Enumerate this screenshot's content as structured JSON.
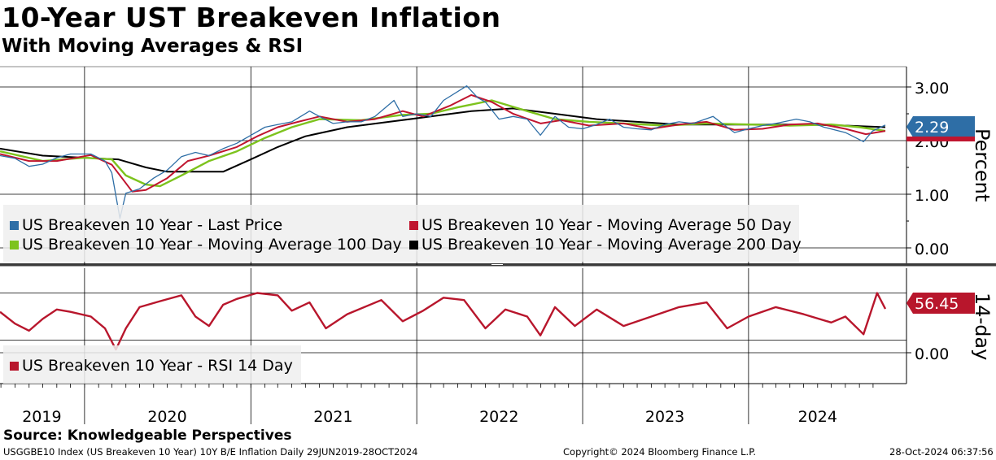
{
  "title": "10-Year UST Breakeven Inflation",
  "subtitle": "With Moving Averages & RSI",
  "source": "Source: Knowledgeable Perspectives",
  "footer": {
    "ticker": "USGGBE10 Index (US Breakeven 10 Year) 10Y B/E Inflation  Daily 29JUN2019-28OCT2024",
    "copyright": "Copyright© 2024 Bloomberg Finance L.P.",
    "timestamp": "28-Oct-2024 06:37:56"
  },
  "colors": {
    "last_price": "#2e6ea6",
    "ma50": "#c0152f",
    "ma100": "#7dc31d",
    "ma200": "#000000",
    "rsi": "#b8162c",
    "last_badge": "#2e6ea6",
    "rsi_badge": "#b8162c"
  },
  "chart_data": [
    {
      "type": "line",
      "ylabel": "Percent",
      "ylim": [
        -0.6,
        3.3
      ],
      "yticks": [
        "3.00",
        "2.00",
        "1.00",
        "0.00"
      ],
      "legend_placement": "bottom-left",
      "last_value_label": "2.29",
      "series": [
        {
          "name": "US Breakeven 10 Year - Last Price",
          "points": [
            [
              "2019-06-29",
              1.72
            ],
            [
              "2019-08-01",
              1.67
            ],
            [
              "2019-09-01",
              1.52
            ],
            [
              "2019-10-01",
              1.56
            ],
            [
              "2019-11-01",
              1.68
            ],
            [
              "2019-12-01",
              1.75
            ],
            [
              "2020-01-15",
              1.75
            ],
            [
              "2020-02-15",
              1.62
            ],
            [
              "2020-03-01",
              1.4
            ],
            [
              "2020-03-19",
              0.55
            ],
            [
              "2020-04-01",
              1.02
            ],
            [
              "2020-05-01",
              1.1
            ],
            [
              "2020-06-01",
              1.3
            ],
            [
              "2020-07-01",
              1.45
            ],
            [
              "2020-08-01",
              1.7
            ],
            [
              "2020-09-01",
              1.78
            ],
            [
              "2020-10-01",
              1.72
            ],
            [
              "2020-11-01",
              1.85
            ],
            [
              "2020-12-01",
              1.95
            ],
            [
              "2021-01-01",
              2.1
            ],
            [
              "2021-02-01",
              2.25
            ],
            [
              "2021-03-01",
              2.3
            ],
            [
              "2021-04-01",
              2.35
            ],
            [
              "2021-05-10",
              2.55
            ],
            [
              "2021-06-01",
              2.45
            ],
            [
              "2021-07-01",
              2.32
            ],
            [
              "2021-08-01",
              2.35
            ],
            [
              "2021-09-01",
              2.35
            ],
            [
              "2021-10-01",
              2.45
            ],
            [
              "2021-11-12",
              2.75
            ],
            [
              "2021-12-01",
              2.45
            ],
            [
              "2022-01-01",
              2.5
            ],
            [
              "2022-02-01",
              2.45
            ],
            [
              "2022-03-01",
              2.75
            ],
            [
              "2022-04-21",
              3.02
            ],
            [
              "2022-05-15",
              2.8
            ],
            [
              "2022-06-01",
              2.72
            ],
            [
              "2022-07-01",
              2.4
            ],
            [
              "2022-08-01",
              2.45
            ],
            [
              "2022-09-01",
              2.4
            ],
            [
              "2022-09-30",
              2.1
            ],
            [
              "2022-11-01",
              2.45
            ],
            [
              "2022-12-01",
              2.25
            ],
            [
              "2023-01-01",
              2.22
            ],
            [
              "2023-02-01",
              2.3
            ],
            [
              "2023-03-01",
              2.4
            ],
            [
              "2023-04-01",
              2.25
            ],
            [
              "2023-05-01",
              2.22
            ],
            [
              "2023-06-01",
              2.2
            ],
            [
              "2023-07-01",
              2.3
            ],
            [
              "2023-08-01",
              2.35
            ],
            [
              "2023-09-01",
              2.32
            ],
            [
              "2023-10-15",
              2.45
            ],
            [
              "2023-11-15",
              2.25
            ],
            [
              "2023-12-01",
              2.15
            ],
            [
              "2024-01-01",
              2.22
            ],
            [
              "2024-02-01",
              2.28
            ],
            [
              "2024-03-01",
              2.32
            ],
            [
              "2024-04-15",
              2.4
            ],
            [
              "2024-05-15",
              2.35
            ],
            [
              "2024-06-15",
              2.25
            ],
            [
              "2024-08-01",
              2.15
            ],
            [
              "2024-09-10",
              1.98
            ],
            [
              "2024-09-30",
              2.18
            ],
            [
              "2024-10-28",
              2.29
            ]
          ]
        },
        {
          "name": "US Breakeven 10 Year - Moving Average 50 Day",
          "points": [
            [
              "2019-06-29",
              1.75
            ],
            [
              "2019-09-01",
              1.62
            ],
            [
              "2019-11-01",
              1.62
            ],
            [
              "2020-01-15",
              1.73
            ],
            [
              "2020-03-01",
              1.55
            ],
            [
              "2020-04-15",
              1.05
            ],
            [
              "2020-05-15",
              1.08
            ],
            [
              "2020-07-01",
              1.3
            ],
            [
              "2020-08-15",
              1.62
            ],
            [
              "2020-10-01",
              1.72
            ],
            [
              "2020-12-01",
              1.88
            ],
            [
              "2021-01-15",
              2.08
            ],
            [
              "2021-03-01",
              2.25
            ],
            [
              "2021-04-15",
              2.35
            ],
            [
              "2021-06-01",
              2.45
            ],
            [
              "2021-08-01",
              2.35
            ],
            [
              "2021-10-01",
              2.4
            ],
            [
              "2021-12-01",
              2.55
            ],
            [
              "2022-01-15",
              2.45
            ],
            [
              "2022-03-15",
              2.65
            ],
            [
              "2022-05-01",
              2.85
            ],
            [
              "2022-06-15",
              2.72
            ],
            [
              "2022-08-01",
              2.5
            ],
            [
              "2022-10-01",
              2.32
            ],
            [
              "2022-11-15",
              2.38
            ],
            [
              "2023-01-15",
              2.28
            ],
            [
              "2023-04-01",
              2.32
            ],
            [
              "2023-06-01",
              2.22
            ],
            [
              "2023-08-01",
              2.3
            ],
            [
              "2023-10-01",
              2.35
            ],
            [
              "2023-12-01",
              2.2
            ],
            [
              "2024-02-01",
              2.22
            ],
            [
              "2024-04-01",
              2.3
            ],
            [
              "2024-06-01",
              2.32
            ],
            [
              "2024-08-01",
              2.22
            ],
            [
              "2024-09-15",
              2.12
            ],
            [
              "2024-10-28",
              2.18
            ]
          ]
        },
        {
          "name": "US Breakeven 10 Year - Moving Average 100 Day",
          "points": [
            [
              "2019-06-29",
              1.8
            ],
            [
              "2019-10-01",
              1.62
            ],
            [
              "2020-01-01",
              1.68
            ],
            [
              "2020-03-01",
              1.65
            ],
            [
              "2020-04-01",
              1.35
            ],
            [
              "2020-05-15",
              1.18
            ],
            [
              "2020-06-15",
              1.15
            ],
            [
              "2020-08-01",
              1.35
            ],
            [
              "2020-10-01",
              1.62
            ],
            [
              "2020-12-01",
              1.8
            ],
            [
              "2021-02-01",
              2.05
            ],
            [
              "2021-04-01",
              2.25
            ],
            [
              "2021-06-01",
              2.4
            ],
            [
              "2021-09-01",
              2.38
            ],
            [
              "2021-12-01",
              2.48
            ],
            [
              "2022-02-01",
              2.5
            ],
            [
              "2022-04-01",
              2.62
            ],
            [
              "2022-06-15",
              2.75
            ],
            [
              "2022-09-01",
              2.55
            ],
            [
              "2022-11-01",
              2.4
            ],
            [
              "2023-01-15",
              2.35
            ],
            [
              "2023-04-01",
              2.32
            ],
            [
              "2023-07-01",
              2.28
            ],
            [
              "2023-10-01",
              2.32
            ],
            [
              "2024-01-01",
              2.3
            ],
            [
              "2024-04-01",
              2.28
            ],
            [
              "2024-07-01",
              2.3
            ],
            [
              "2024-09-01",
              2.25
            ],
            [
              "2024-10-28",
              2.18
            ]
          ]
        },
        {
          "name": "US Breakeven 10 Year - Moving Average 200 Day",
          "points": [
            [
              "2019-06-29",
              1.85
            ],
            [
              "2019-10-01",
              1.72
            ],
            [
              "2020-01-01",
              1.68
            ],
            [
              "2020-03-15",
              1.65
            ],
            [
              "2020-05-15",
              1.5
            ],
            [
              "2020-07-01",
              1.42
            ],
            [
              "2020-09-01",
              1.42
            ],
            [
              "2020-11-01",
              1.42
            ],
            [
              "2021-01-01",
              1.65
            ],
            [
              "2021-03-01",
              1.88
            ],
            [
              "2021-05-01",
              2.08
            ],
            [
              "2021-08-01",
              2.25
            ],
            [
              "2021-11-01",
              2.35
            ],
            [
              "2022-02-01",
              2.45
            ],
            [
              "2022-05-01",
              2.55
            ],
            [
              "2022-08-01",
              2.6
            ],
            [
              "2022-11-01",
              2.5
            ],
            [
              "2023-02-01",
              2.4
            ],
            [
              "2023-05-01",
              2.35
            ],
            [
              "2023-08-01",
              2.3
            ],
            [
              "2023-11-01",
              2.3
            ],
            [
              "2024-02-01",
              2.3
            ],
            [
              "2024-05-01",
              2.3
            ],
            [
              "2024-08-01",
              2.28
            ],
            [
              "2024-10-28",
              2.25
            ]
          ]
        }
      ]
    },
    {
      "type": "line",
      "ylabel": "14-day",
      "yticks": [
        "0.00"
      ],
      "legend_placement": "bottom-left",
      "last_value_label": "56.45",
      "series": [
        {
          "name": "US Breakeven 10 Year - RSI 14 Day",
          "points": [
            [
              "2019-06-29",
              54
            ],
            [
              "2019-08-01",
              44
            ],
            [
              "2019-09-01",
              38
            ],
            [
              "2019-10-01",
              48
            ],
            [
              "2019-11-01",
              56
            ],
            [
              "2019-12-01",
              54
            ],
            [
              "2020-01-15",
              50
            ],
            [
              "2020-02-15",
              40
            ],
            [
              "2020-03-10",
              22
            ],
            [
              "2020-04-01",
              40
            ],
            [
              "2020-05-01",
              58
            ],
            [
              "2020-06-15",
              63
            ],
            [
              "2020-08-01",
              68
            ],
            [
              "2020-09-01",
              50
            ],
            [
              "2020-10-01",
              42
            ],
            [
              "2020-11-01",
              60
            ],
            [
              "2020-12-01",
              65
            ],
            [
              "2021-01-15",
              70
            ],
            [
              "2021-03-01",
              68
            ],
            [
              "2021-04-01",
              55
            ],
            [
              "2021-05-10",
              62
            ],
            [
              "2021-06-15",
              40
            ],
            [
              "2021-08-01",
              52
            ],
            [
              "2021-10-15",
              64
            ],
            [
              "2021-12-01",
              46
            ],
            [
              "2022-01-15",
              55
            ],
            [
              "2022-03-01",
              66
            ],
            [
              "2022-04-15",
              64
            ],
            [
              "2022-06-01",
              40
            ],
            [
              "2022-07-15",
              56
            ],
            [
              "2022-09-01",
              50
            ],
            [
              "2022-09-30",
              34
            ],
            [
              "2022-11-01",
              58
            ],
            [
              "2022-12-15",
              42
            ],
            [
              "2023-02-01",
              56
            ],
            [
              "2023-04-01",
              42
            ],
            [
              "2023-06-01",
              50
            ],
            [
              "2023-08-01",
              58
            ],
            [
              "2023-10-01",
              62
            ],
            [
              "2023-11-15",
              40
            ],
            [
              "2024-01-01",
              50
            ],
            [
              "2024-03-01",
              58
            ],
            [
              "2024-05-01",
              52
            ],
            [
              "2024-07-01",
              45
            ],
            [
              "2024-08-01",
              50
            ],
            [
              "2024-09-10",
              35
            ],
            [
              "2024-10-10",
              70
            ],
            [
              "2024-10-28",
              56.45
            ]
          ]
        }
      ]
    }
  ],
  "x_axis": {
    "years": [
      "2019",
      "2020",
      "2021",
      "2022",
      "2023",
      "2024"
    ]
  }
}
